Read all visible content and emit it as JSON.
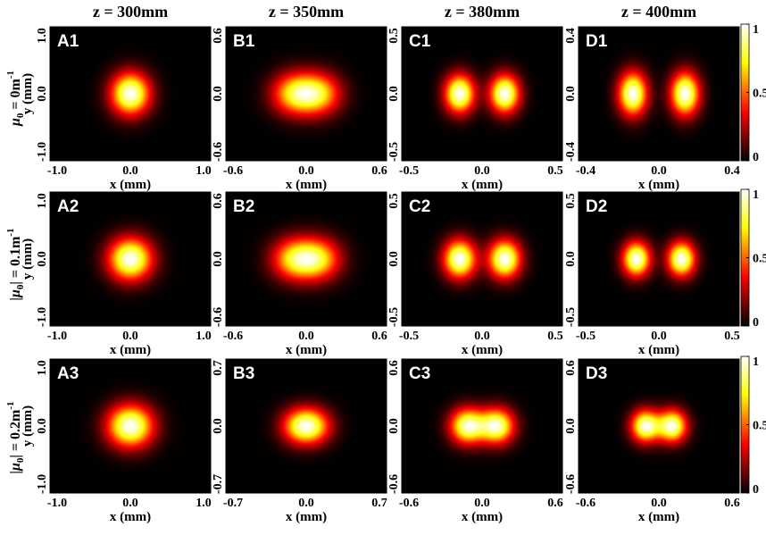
{
  "chart_data": {
    "type": "heatmap",
    "colormap": "hot",
    "colorbar": {
      "ticks": [
        "0",
        "0.5",
        "1"
      ],
      "range": [
        0,
        1
      ]
    },
    "column_titles": [
      "z = 300mm",
      "z = 350mm",
      "z = 380mm",
      "z = 400mm"
    ],
    "row_labels": [
      {
        "main": "μ",
        "sub": "0",
        "rest": " = 0m",
        "sup": "-1"
      },
      {
        "main": "|μ",
        "sub": "0",
        "rest": "| = 0.1m",
        "sup": "-1"
      },
      {
        "main": "|μ",
        "sub": "0",
        "rest": "| = 0.2m",
        "sup": "-1"
      }
    ],
    "xlabel": "x (mm)",
    "ylabel": "y (mm)",
    "panels": [
      {
        "label": "A1",
        "range": 1.0,
        "ticks": [
          "-1.0",
          "0.0",
          "1.0"
        ],
        "separation": 0.0,
        "spread_x": 0.17,
        "spread_y": 0.22
      },
      {
        "label": "B1",
        "range": 0.6,
        "ticks": [
          "-0.6",
          "0.0",
          "0.6"
        ],
        "separation": 0.09,
        "spread_x": 0.12,
        "spread_y": 0.13
      },
      {
        "label": "C1",
        "range": 0.5,
        "ticks": [
          "-0.5",
          "0.0",
          "0.5"
        ],
        "separation": 0.14,
        "spread_x": 0.065,
        "spread_y": 0.1
      },
      {
        "label": "D1",
        "range": 0.4,
        "ticks": [
          "-0.4",
          "0.0",
          "0.4"
        ],
        "separation": 0.13,
        "spread_x": 0.05,
        "spread_y": 0.09
      },
      {
        "label": "A2",
        "range": 1.0,
        "ticks": [
          "-1.0",
          "0.0",
          "1.0"
        ],
        "separation": 0.0,
        "spread_x": 0.19,
        "spread_y": 0.22
      },
      {
        "label": "B2",
        "range": 0.6,
        "ticks": [
          "-0.6",
          "0.0",
          "0.6"
        ],
        "separation": 0.09,
        "spread_x": 0.12,
        "spread_y": 0.13
      },
      {
        "label": "C2",
        "range": 0.5,
        "ticks": [
          "-0.5",
          "0.0",
          "0.5"
        ],
        "separation": 0.14,
        "spread_x": 0.07,
        "spread_y": 0.1
      },
      {
        "label": "D2",
        "range": 0.5,
        "ticks": [
          "-0.5",
          "0.0",
          "0.5"
        ],
        "separation": 0.14,
        "spread_x": 0.06,
        "spread_y": 0.09
      },
      {
        "label": "A3",
        "range": 1.0,
        "ticks": [
          "-1.0",
          "0.0",
          "1.0"
        ],
        "separation": 0.0,
        "spread_x": 0.2,
        "spread_y": 0.22
      },
      {
        "label": "B3",
        "range": 0.7,
        "ticks": [
          "-0.7",
          "0.0",
          "0.7"
        ],
        "separation": 0.06,
        "spread_x": 0.12,
        "spread_y": 0.13
      },
      {
        "label": "C3",
        "range": 0.6,
        "ticks": [
          "-0.6",
          "0.0",
          "0.6"
        ],
        "separation": 0.11,
        "spread_x": 0.09,
        "spread_y": 0.11
      },
      {
        "label": "D3",
        "range": 0.6,
        "ticks": [
          "-0.6",
          "0.0",
          "0.6"
        ],
        "separation": 0.1,
        "spread_x": 0.075,
        "spread_y": 0.1
      }
    ]
  }
}
